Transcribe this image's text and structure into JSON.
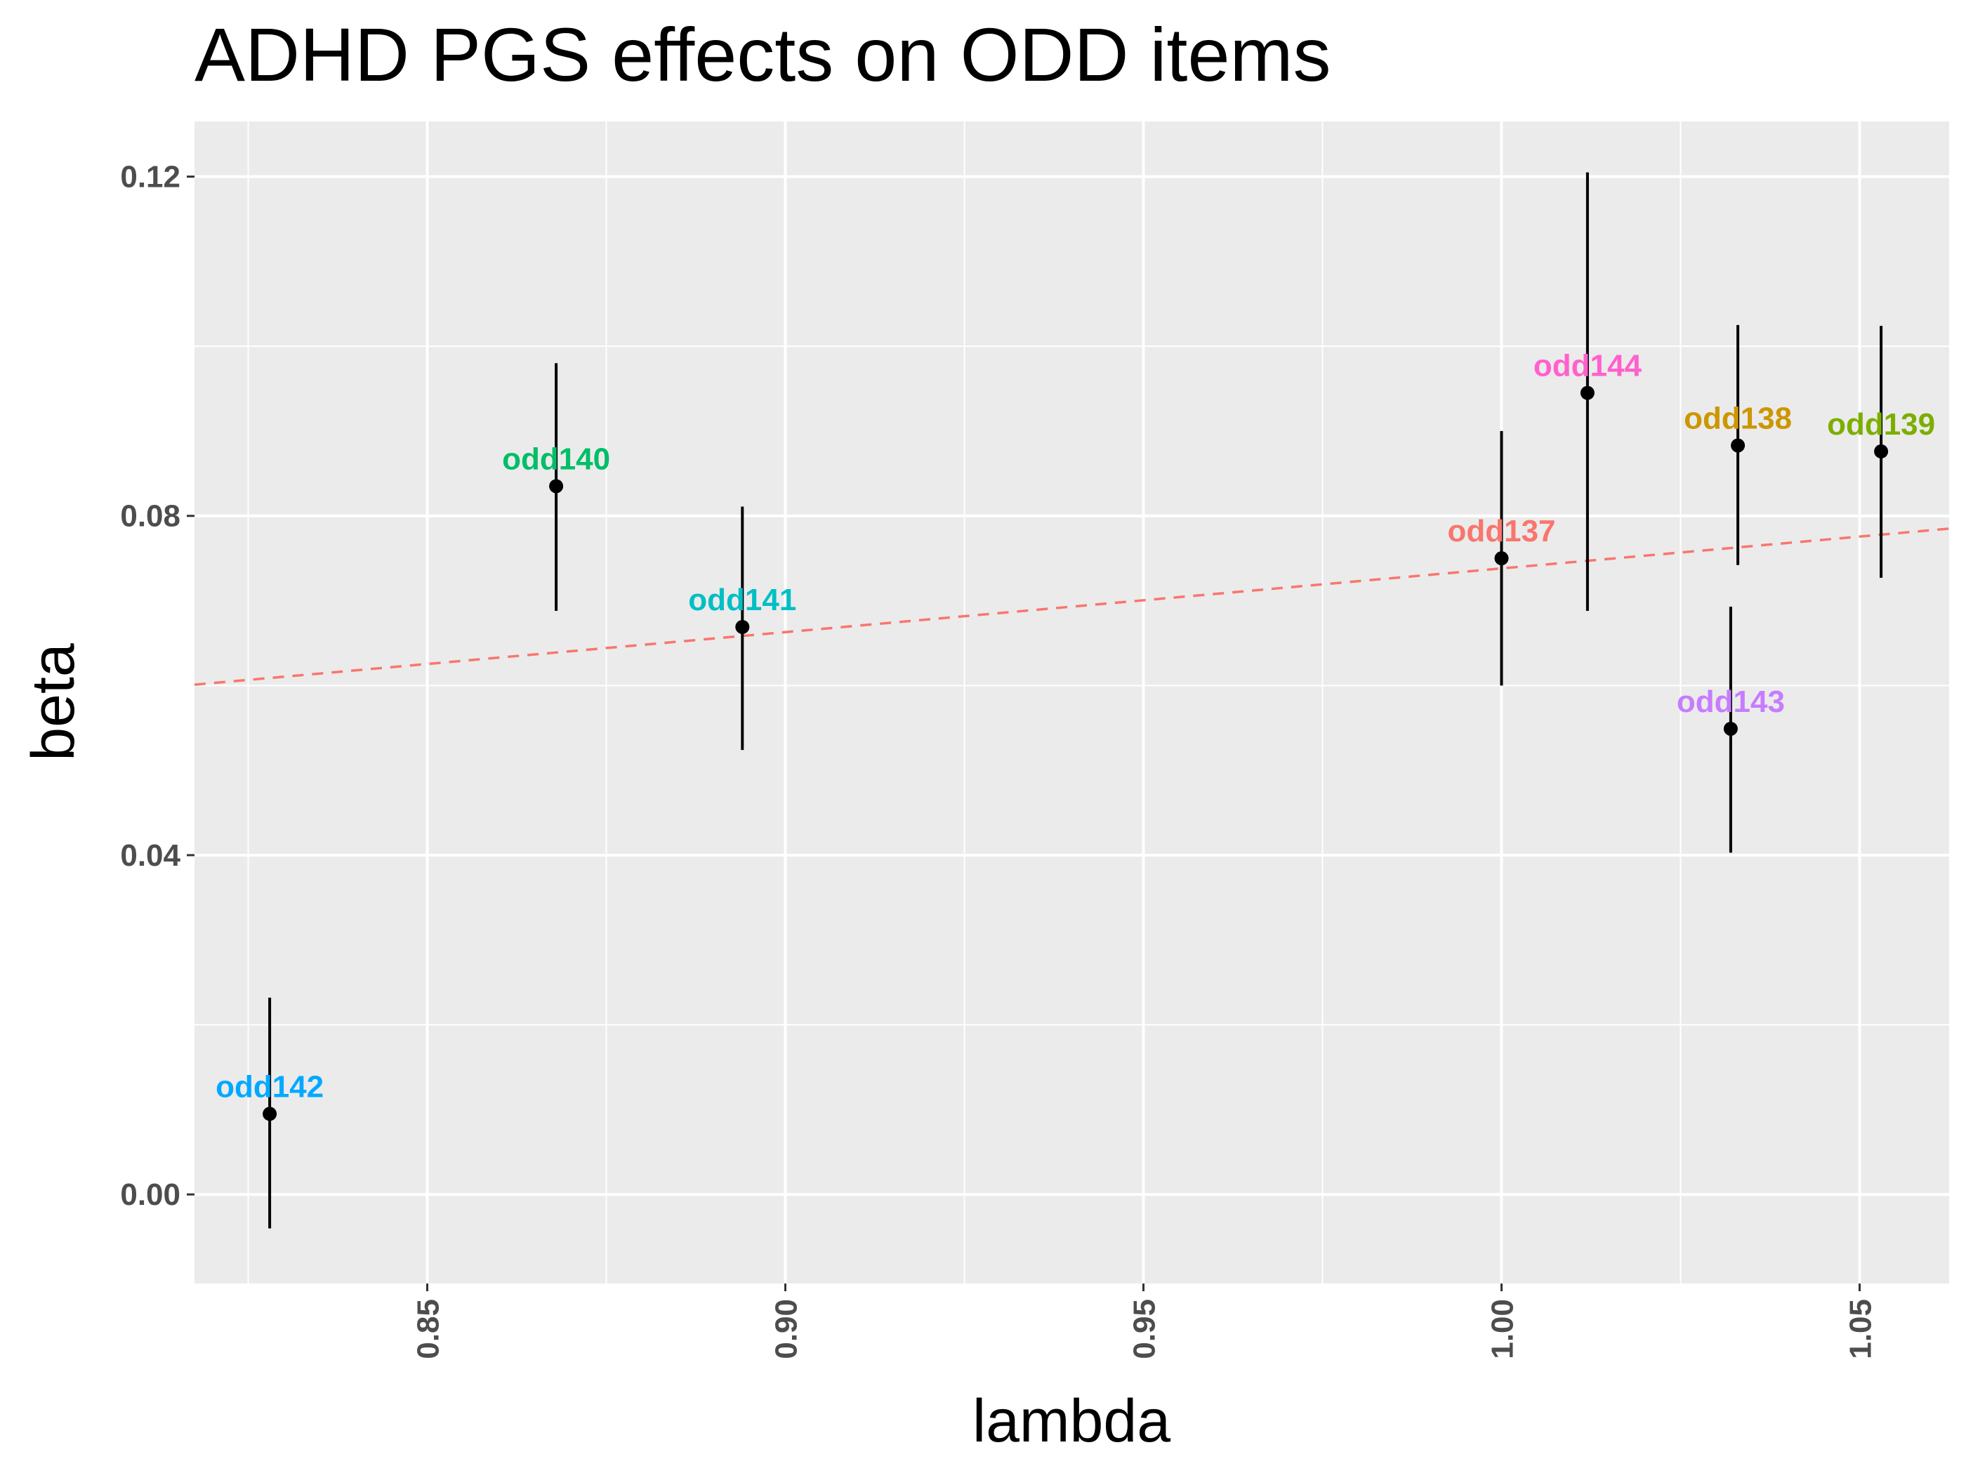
{
  "colors": {
    "panel_background": "#ebebeb",
    "grid": "#ffffff",
    "fit_line": "#f8766d",
    "points": "#000000",
    "tick_text": "#4d4d4d"
  },
  "chart_data": {
    "type": "scatter",
    "title": "ADHD PGS effects on ODD items",
    "xlabel": "lambda",
    "ylabel": "beta",
    "xlim": [
      0.8175,
      1.0625
    ],
    "ylim": [
      -0.0105,
      0.1265
    ],
    "x_ticks": [
      0.85,
      0.9,
      0.95,
      1.0,
      1.05
    ],
    "x_tick_labels": [
      "0.85",
      "0.90",
      "0.95",
      "1.00",
      "1.05"
    ],
    "y_ticks": [
      0.0,
      0.04,
      0.08,
      0.12
    ],
    "y_tick_labels": [
      "0.00",
      "0.04",
      "0.08",
      "0.12"
    ],
    "grid": true,
    "legend": "none",
    "points": [
      {
        "label": "odd137",
        "color": "#f8766d",
        "x": 1.0,
        "y": 0.075,
        "ymin": 0.06,
        "ymax": 0.09
      },
      {
        "label": "odd138",
        "color": "#cd9600",
        "x": 1.033,
        "y": 0.0883,
        "ymin": 0.0742,
        "ymax": 0.1025
      },
      {
        "label": "odd139",
        "color": "#7cae00",
        "x": 1.053,
        "y": 0.0876,
        "ymin": 0.0727,
        "ymax": 0.1024
      },
      {
        "label": "odd140",
        "color": "#00be67",
        "x": 0.868,
        "y": 0.0835,
        "ymin": 0.0688,
        "ymax": 0.098
      },
      {
        "label": "odd141",
        "color": "#00bfc4",
        "x": 0.894,
        "y": 0.0669,
        "ymin": 0.0524,
        "ymax": 0.0811
      },
      {
        "label": "odd142",
        "color": "#00a9ff",
        "x": 0.828,
        "y": 0.0095,
        "ymin": -0.004,
        "ymax": 0.0232
      },
      {
        "label": "odd143",
        "color": "#c77cff",
        "x": 1.032,
        "y": 0.0549,
        "ymin": 0.0403,
        "ymax": 0.0693
      },
      {
        "label": "odd144",
        "color": "#ff61cc",
        "x": 1.012,
        "y": 0.0945,
        "ymin": 0.0688,
        "ymax": 0.1205
      }
    ],
    "fit_line": {
      "style": "dashed",
      "x": [
        0.8175,
        1.0625
      ],
      "y": [
        0.0601,
        0.0785
      ]
    }
  }
}
